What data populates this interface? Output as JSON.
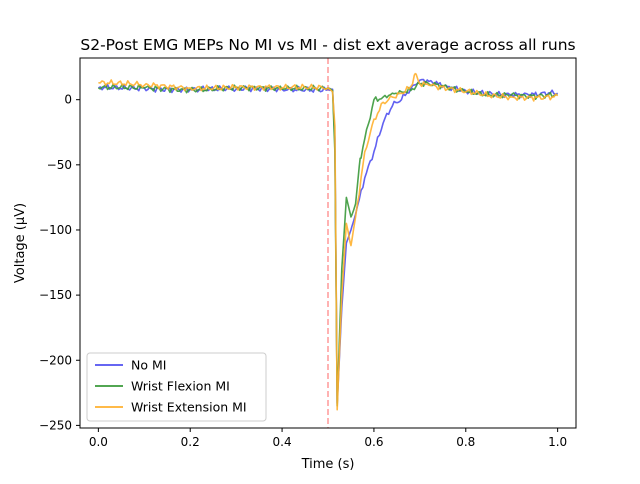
{
  "chart_data": {
    "type": "line",
    "title": "S2-Post EMG MEPs No MI vs MI - dist ext average across all runs",
    "xlabel": "Time (s)",
    "ylabel": "Voltage (µV)",
    "xlim": [
      -0.04,
      1.04
    ],
    "ylim": [
      -252,
      32
    ],
    "xticks": [
      0.0,
      0.2,
      0.4,
      0.6,
      0.8,
      1.0
    ],
    "xtick_labels": [
      "0.0",
      "0.2",
      "0.4",
      "0.6",
      "0.8",
      "1.0"
    ],
    "yticks": [
      0,
      -50,
      -100,
      -150,
      -200,
      -250
    ],
    "ytick_labels": [
      "0",
      "−50",
      "−100",
      "−150",
      "−200",
      "−250"
    ],
    "grid": false,
    "legend_position": "lower-left",
    "vline": {
      "x": 0.5,
      "color": "#ff9999",
      "style": "dashed"
    },
    "series": [
      {
        "name": "No MI",
        "color": "#5050f0",
        "points": [
          [
            0.0,
            9
          ],
          [
            0.1,
            9
          ],
          [
            0.2,
            8
          ],
          [
            0.3,
            8
          ],
          [
            0.4,
            8
          ],
          [
            0.5,
            8
          ],
          [
            0.51,
            8
          ],
          [
            0.515,
            -30
          ],
          [
            0.52,
            -233
          ],
          [
            0.53,
            -160
          ],
          [
            0.54,
            -110
          ],
          [
            0.55,
            -100
          ],
          [
            0.56,
            -88
          ],
          [
            0.58,
            -60
          ],
          [
            0.6,
            -40
          ],
          [
            0.62,
            -18
          ],
          [
            0.64,
            -5
          ],
          [
            0.66,
            0
          ],
          [
            0.68,
            8
          ],
          [
            0.7,
            15
          ],
          [
            0.72,
            14
          ],
          [
            0.74,
            12
          ],
          [
            0.76,
            10
          ],
          [
            0.8,
            7
          ],
          [
            0.85,
            5
          ],
          [
            0.9,
            4
          ],
          [
            0.95,
            4
          ],
          [
            1.0,
            5
          ]
        ]
      },
      {
        "name": "Wrist Flexion MI",
        "color": "#3a993a",
        "points": [
          [
            0.0,
            9
          ],
          [
            0.1,
            9
          ],
          [
            0.2,
            8
          ],
          [
            0.3,
            9
          ],
          [
            0.4,
            8
          ],
          [
            0.5,
            9
          ],
          [
            0.51,
            7
          ],
          [
            0.515,
            -40
          ],
          [
            0.52,
            -235
          ],
          [
            0.53,
            -130
          ],
          [
            0.54,
            -75
          ],
          [
            0.55,
            -90
          ],
          [
            0.56,
            -80
          ],
          [
            0.57,
            -45
          ],
          [
            0.58,
            -30
          ],
          [
            0.6,
            0
          ],
          [
            0.62,
            2
          ],
          [
            0.64,
            5
          ],
          [
            0.66,
            6
          ],
          [
            0.68,
            7
          ],
          [
            0.7,
            12
          ],
          [
            0.72,
            12
          ],
          [
            0.76,
            9
          ],
          [
            0.8,
            6
          ],
          [
            0.85,
            4
          ],
          [
            0.9,
            4
          ],
          [
            0.95,
            3
          ],
          [
            1.0,
            4
          ]
        ]
      },
      {
        "name": "Wrist Extension MI",
        "color": "#ffb02e",
        "points": [
          [
            0.0,
            13
          ],
          [
            0.1,
            11
          ],
          [
            0.2,
            9
          ],
          [
            0.3,
            10
          ],
          [
            0.4,
            9
          ],
          [
            0.5,
            9
          ],
          [
            0.51,
            6
          ],
          [
            0.515,
            -20
          ],
          [
            0.52,
            -238
          ],
          [
            0.53,
            -150
          ],
          [
            0.54,
            -95
          ],
          [
            0.55,
            -112
          ],
          [
            0.56,
            -90
          ],
          [
            0.58,
            -40
          ],
          [
            0.6,
            -15
          ],
          [
            0.62,
            -2
          ],
          [
            0.64,
            2
          ],
          [
            0.66,
            5
          ],
          [
            0.68,
            10
          ],
          [
            0.69,
            20
          ],
          [
            0.7,
            12
          ],
          [
            0.72,
            11
          ],
          [
            0.76,
            8
          ],
          [
            0.8,
            6
          ],
          [
            0.85,
            3
          ],
          [
            0.9,
            2
          ],
          [
            0.95,
            2
          ],
          [
            1.0,
            3
          ]
        ]
      }
    ]
  }
}
